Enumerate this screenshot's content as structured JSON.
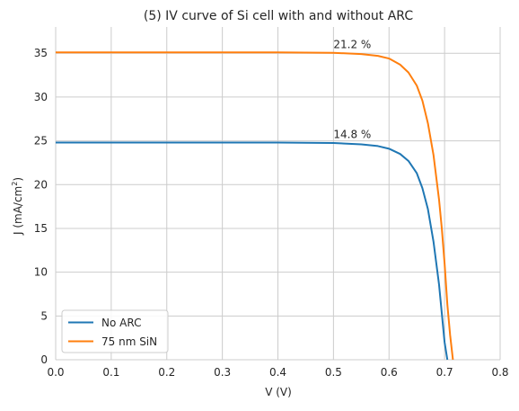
{
  "chart_data": {
    "type": "line",
    "title": "(5) IV curve of Si cell with and without ARC",
    "xlabel": "V (V)",
    "ylabel": {
      "text": "J (mA/cm",
      "superscript": "2",
      "suffix": ")"
    },
    "xlim": [
      0.0,
      0.8
    ],
    "ylim": [
      0,
      38
    ],
    "xticks": [
      0.0,
      0.1,
      0.2,
      0.3,
      0.4,
      0.5,
      0.6,
      0.7,
      0.8
    ],
    "xtick_labels": [
      "0.0",
      "0.1",
      "0.2",
      "0.3",
      "0.4",
      "0.5",
      "0.6",
      "0.7",
      "0.8"
    ],
    "yticks": [
      0,
      5,
      10,
      15,
      20,
      25,
      30,
      35
    ],
    "ytick_labels": [
      "0",
      "5",
      "10",
      "15",
      "20",
      "25",
      "30",
      "35"
    ],
    "grid": true,
    "legend_position": "lower-left",
    "series": [
      {
        "name": "No ARC",
        "color": "#1f77b4",
        "x": [
          0.0,
          0.1,
          0.2,
          0.3,
          0.4,
          0.5,
          0.55,
          0.58,
          0.6,
          0.62,
          0.635,
          0.65,
          0.66,
          0.67,
          0.68,
          0.69,
          0.695,
          0.7,
          0.705
        ],
        "y": [
          24.8,
          24.8,
          24.8,
          24.8,
          24.8,
          24.75,
          24.6,
          24.4,
          24.1,
          23.5,
          22.7,
          21.3,
          19.6,
          17.2,
          13.5,
          8.6,
          5.3,
          2.0,
          0.0
        ]
      },
      {
        "name": "75 nm SiN",
        "color": "#ff7f0e",
        "x": [
          0.0,
          0.1,
          0.2,
          0.3,
          0.4,
          0.5,
          0.55,
          0.58,
          0.6,
          0.62,
          0.635,
          0.65,
          0.66,
          0.67,
          0.68,
          0.69,
          0.695,
          0.7,
          0.705,
          0.71,
          0.715
        ],
        "y": [
          35.1,
          35.1,
          35.1,
          35.1,
          35.1,
          35.05,
          34.9,
          34.7,
          34.4,
          33.7,
          32.8,
          31.3,
          29.6,
          27.0,
          23.4,
          18.3,
          15.0,
          11.0,
          6.3,
          2.8,
          0.0
        ]
      }
    ],
    "annotations": [
      {
        "text": "21.2 %",
        "x": 0.5,
        "y": 35.6
      },
      {
        "text": "14.8 %",
        "x": 0.5,
        "y": 25.3
      }
    ]
  }
}
